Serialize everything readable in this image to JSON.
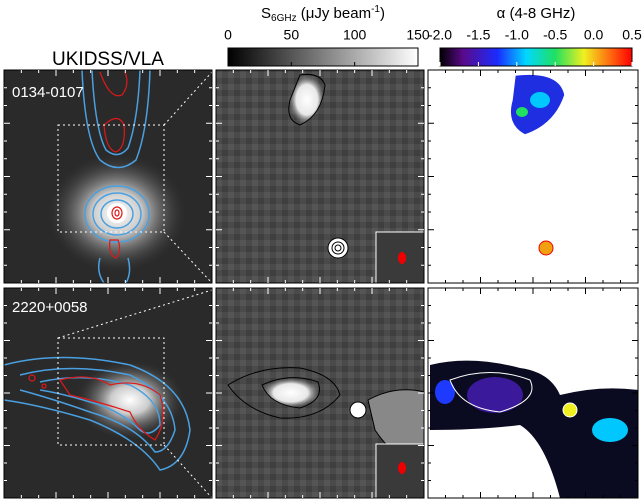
{
  "header": {
    "left_title": "UKIDSS/VLA"
  },
  "colorbars": [
    {
      "title_parts": [
        "S",
        "6GHz",
        " (μJy beam",
        "-1",
        ")"
      ],
      "lim": [
        0,
        150
      ],
      "ticks": [
        0,
        50,
        100,
        150
      ]
    },
    {
      "title_parts": [
        "α (4-8 GHz)"
      ],
      "lim": [
        -2.0,
        0.5
      ],
      "ticks": [
        {
          "value": -2.0,
          "label": "-2.0"
        },
        -1.5,
        {
          "value": -1.0,
          "label": "-1.0"
        },
        -0.5,
        {
          "value": 0.0,
          "label": "0.0"
        },
        0.5
      ]
    }
  ],
  "rows": [
    {
      "label": "0134-0107"
    },
    {
      "label": "2220+0058"
    }
  ]
}
